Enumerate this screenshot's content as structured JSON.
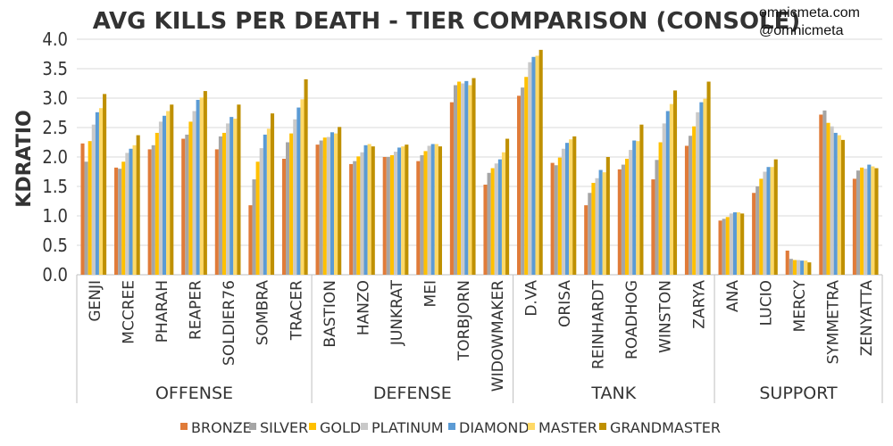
{
  "chart_data": {
    "type": "bar",
    "title": "AVG KILLS PER DEATH - TIER COMPARISON (CONSOLE)",
    "ylabel": "KDRATIO",
    "xlabel": "",
    "ylim": [
      0,
      4.0
    ],
    "yticks": [
      "0.0",
      "0.5",
      "1.0",
      "1.5",
      "2.0",
      "2.5",
      "3.0",
      "3.5",
      "4.0"
    ],
    "grid": true,
    "legend_position": "bottom",
    "groups": [
      {
        "name": "OFFENSE",
        "categories": [
          "GENJI",
          "MCCREE",
          "PHARAH",
          "REAPER",
          "SOLDIER76",
          "SOMBRA",
          "TRACER"
        ]
      },
      {
        "name": "DEFENSE",
        "categories": [
          "BASTION",
          "HANZO",
          "JUNKRAT",
          "MEI",
          "TORBJORN",
          "WIDOWMAKER"
        ]
      },
      {
        "name": "TANK",
        "categories": [
          "D.VA",
          "ORISA",
          "REINHARDT",
          "ROADHOG",
          "WINSTON",
          "ZARYA"
        ]
      },
      {
        "name": "SUPPORT",
        "categories": [
          "ANA",
          "LUCIO",
          "MERCY",
          "SYMMETRA",
          "ZENYATTA"
        ]
      }
    ],
    "categories": [
      "GENJI",
      "MCCREE",
      "PHARAH",
      "REAPER",
      "SOLDIER76",
      "SOMBRA",
      "TRACER",
      "BASTION",
      "HANZO",
      "JUNKRAT",
      "MEI",
      "TORBJORN",
      "WIDOWMAKER",
      "D.VA",
      "ORISA",
      "REINHARDT",
      "ROADHOG",
      "WINSTON",
      "ZARYA",
      "ANA",
      "LUCIO",
      "MERCY",
      "SYMMETRA",
      "ZENYATTA"
    ],
    "series": [
      {
        "name": "BRONZE",
        "color": "#e07b39",
        "values": [
          2.23,
          1.82,
          2.13,
          2.31,
          2.13,
          1.18,
          1.97,
          2.21,
          1.88,
          2.0,
          1.93,
          2.93,
          1.53,
          3.04,
          1.9,
          1.18,
          1.79,
          1.62,
          2.19,
          0.92,
          1.39,
          0.41,
          2.72,
          1.63
        ]
      },
      {
        "name": "SILVER",
        "color": "#a5a5a5",
        "values": [
          1.92,
          1.8,
          2.2,
          2.38,
          2.35,
          1.62,
          2.25,
          2.28,
          1.93,
          2.0,
          2.03,
          3.22,
          1.73,
          3.18,
          1.86,
          1.39,
          1.87,
          1.95,
          2.36,
          0.95,
          1.5,
          0.27,
          2.79,
          1.77
        ]
      },
      {
        "name": "GOLD",
        "color": "#ffc000",
        "values": [
          2.27,
          1.92,
          2.41,
          2.6,
          2.41,
          1.92,
          2.4,
          2.33,
          2.01,
          2.03,
          2.1,
          3.28,
          1.81,
          3.36,
          1.99,
          1.56,
          1.97,
          2.25,
          2.52,
          0.98,
          1.63,
          0.25,
          2.58,
          1.82
        ]
      },
      {
        "name": "PLATINUM",
        "color": "#c9c9c9",
        "values": [
          2.55,
          2.07,
          2.6,
          2.78,
          2.57,
          2.15,
          2.64,
          2.34,
          2.08,
          2.09,
          2.19,
          3.25,
          1.89,
          3.61,
          2.14,
          1.64,
          2.12,
          2.57,
          2.76,
          1.04,
          1.75,
          0.25,
          2.52,
          1.8
        ]
      },
      {
        "name": "DIAMOND",
        "color": "#5b9bd5",
        "values": [
          2.76,
          2.14,
          2.7,
          2.97,
          2.68,
          2.38,
          2.84,
          2.42,
          2.2,
          2.16,
          2.22,
          3.29,
          1.96,
          3.7,
          2.24,
          1.78,
          2.28,
          2.78,
          2.93,
          1.06,
          1.83,
          0.24,
          2.41,
          1.87
        ]
      },
      {
        "name": "MASTER",
        "color": "#ffd966",
        "values": [
          2.83,
          2.2,
          2.78,
          3.01,
          2.65,
          2.48,
          2.98,
          2.4,
          2.22,
          2.18,
          2.22,
          3.22,
          2.08,
          3.72,
          2.3,
          1.74,
          2.27,
          2.9,
          2.99,
          1.06,
          1.83,
          0.24,
          2.37,
          1.84
        ]
      },
      {
        "name": "GRANDMASTER",
        "color": "#bf9000",
        "values": [
          3.07,
          2.37,
          2.89,
          3.12,
          2.89,
          2.74,
          3.32,
          2.51,
          2.18,
          2.21,
          2.18,
          3.34,
          2.31,
          3.82,
          2.35,
          2.0,
          2.55,
          3.13,
          3.28,
          1.04,
          1.96,
          0.21,
          2.29,
          1.81
        ]
      }
    ]
  },
  "watermark": {
    "line1": "omnicmeta.com",
    "line2": "@omnicmeta"
  }
}
